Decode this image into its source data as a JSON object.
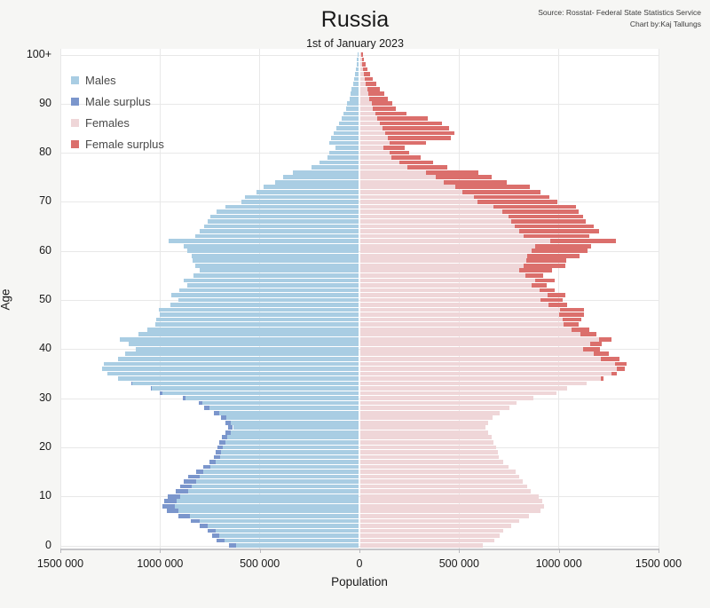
{
  "header": {
    "title": "Russia",
    "subtitle": "1st of January 2023",
    "source_line1": "Source: Rosstat- Federal State Statistics Service",
    "source_line2": "Chart by:Kaj Tallungs"
  },
  "chart_data": {
    "type": "bar",
    "variant": "population-pyramid",
    "title": "Russia",
    "subtitle": "1st of January 2023",
    "xlabel": "Population",
    "ylabel": "Age",
    "grid": true,
    "legend_position": "top-left-inside",
    "x_axis": {
      "min": -1500000,
      "max": 1500000,
      "tick_interval": 500000,
      "tick_values": [
        -1500000,
        -1000000,
        -500000,
        0,
        500000,
        1000000,
        1500000
      ],
      "tick_labels": [
        "1500 000",
        "1000 000",
        "500 000",
        "0",
        "500 000",
        "1000 000",
        "1500 000"
      ]
    },
    "y_axis": {
      "tick_values": [
        0,
        10,
        20,
        30,
        40,
        50,
        60,
        70,
        80,
        90,
        100
      ],
      "tick_labels": [
        "0",
        "10",
        "20",
        "30",
        "40",
        "50",
        "60",
        "70",
        "80",
        "90",
        "100+"
      ]
    },
    "legend": [
      {
        "label": "Males",
        "color": "#a9cde3"
      },
      {
        "label": "Male surplus",
        "color": "#7b96cc"
      },
      {
        "label": "Females",
        "color": "#efd6d8"
      },
      {
        "label": "Female surplus",
        "color": "#db6f6c"
      }
    ],
    "colors": {
      "males": "#a9cde3",
      "male_surplus": "#7b96cc",
      "females": "#efd6d8",
      "female_surplus": "#db6f6c",
      "figure_bg": "#f6f6f4",
      "plot_bg": "#ffffff",
      "gridline": "#e8e8e8"
    },
    "age_min": 0,
    "age_max": 100,
    "series": [
      {
        "name": "Males",
        "values": [
          652000,
          714000,
          737000,
          759000,
          800000,
          845000,
          905000,
          965000,
          985000,
          975000,
          958000,
          920000,
          898000,
          877000,
          858000,
          815000,
          780000,
          752000,
          726000,
          720000,
          712000,
          700000,
          688000,
          668000,
          658000,
          668000,
          692000,
          728000,
          775000,
          805000,
          885000,
          1000000,
          1045000,
          1140000,
          1210000,
          1262000,
          1290000,
          1278000,
          1210000,
          1172000,
          1120000,
          1155000,
          1198000,
          1108000,
          1062000,
          1022000,
          1018000,
          1000000,
          1002000,
          948000,
          905000,
          940000,
          900000,
          860000,
          880000,
          830000,
          800000,
          820000,
          835000,
          840000,
          860000,
          880000,
          955000,
          820000,
          800000,
          775000,
          760000,
          745000,
          715000,
          670000,
          590000,
          573000,
          513000,
          478000,
          420000,
          380000,
          330000,
          240000,
          200000,
          160000,
          150000,
          120000,
          150000,
          140000,
          128000,
          112000,
          98000,
          86000,
          76000,
          66000,
          58000,
          48000,
          42000,
          36000,
          30000,
          25000,
          20000,
          16000,
          13000,
          10000,
          7000
        ]
      },
      {
        "name": "Females",
        "values": [
          617000,
          676000,
          699000,
          719000,
          758000,
          801000,
          850000,
          905000,
          925000,
          915000,
          898000,
          858000,
          838000,
          818000,
          800000,
          779000,
          745000,
          718000,
          698000,
          692000,
          684000,
          672000,
          660000,
          641000,
          632000,
          642000,
          666000,
          703000,
          752000,
          784000,
          868000,
          988000,
          1038000,
          1138000,
          1222000,
          1288000,
          1330000,
          1338000,
          1302000,
          1248000,
          1205000,
          1212000,
          1262000,
          1185000,
          1152000,
          1098000,
          1112000,
          1122000,
          1126000,
          1038000,
          1018000,
          1030000,
          975000,
          935000,
          975000,
          920000,
          965000,
          1030000,
          1035000,
          1100000,
          1142000,
          1158000,
          1285000,
          1150000,
          1198000,
          1172000,
          1132000,
          1118000,
          1098000,
          1085000,
          992000,
          952000,
          906000,
          852000,
          738000,
          662000,
          595000,
          438000,
          368000,
          306000,
          246000,
          226000,
          332000,
          456000,
          472000,
          446000,
          412000,
          342000,
          232000,
          182000,
          162000,
          138000,
          121000,
          98000,
          81000,
          64000,
          50000,
          38000,
          29000,
          22000,
          16000
        ]
      }
    ]
  }
}
